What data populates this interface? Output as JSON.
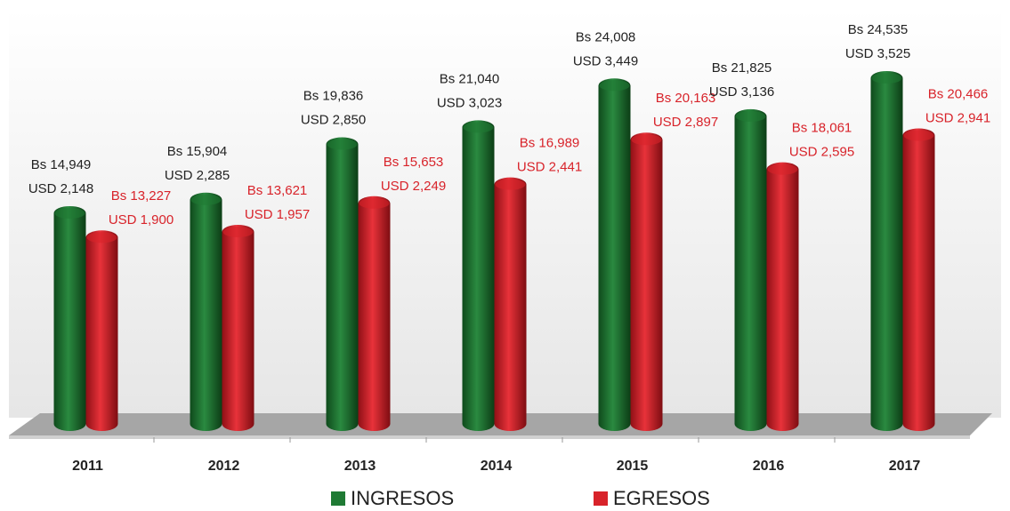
{
  "chart_data": {
    "type": "bar",
    "categories": [
      "2011",
      "2012",
      "2013",
      "2014",
      "2015",
      "2016",
      "2017"
    ],
    "series": [
      {
        "name": "INGRESOS",
        "color": "#1f7a34",
        "values": [
          14949,
          15904,
          19836,
          21040,
          24008,
          21825,
          24535
        ],
        "value_labels": [
          "Bs 14,949",
          "Bs 15,904",
          "Bs 19,836",
          "Bs 21,040",
          "Bs 24,008",
          "Bs 21,825",
          "Bs 24,535"
        ],
        "usd_labels": [
          "USD 2,148",
          "USD 2,285",
          "USD 2,850",
          "USD 3,023",
          "USD 3,449",
          "USD 3,136",
          "USD 3,525"
        ]
      },
      {
        "name": "EGRESOS",
        "color": "#d8232a",
        "values": [
          13227,
          13621,
          15653,
          16989,
          20163,
          18061,
          20466
        ],
        "value_labels": [
          "Bs 13,227",
          "Bs 13,621",
          "Bs 15,653",
          "Bs 16,989",
          "Bs 20,163",
          "Bs 18,061",
          "Bs 20,466"
        ],
        "usd_labels": [
          "USD 1,900",
          "USD 1,957",
          "USD 2,249",
          "USD 2,441",
          "USD 2,897",
          "USD 2,595",
          "USD 2,941"
        ]
      }
    ],
    "ylim": [
      0,
      28000
    ]
  }
}
